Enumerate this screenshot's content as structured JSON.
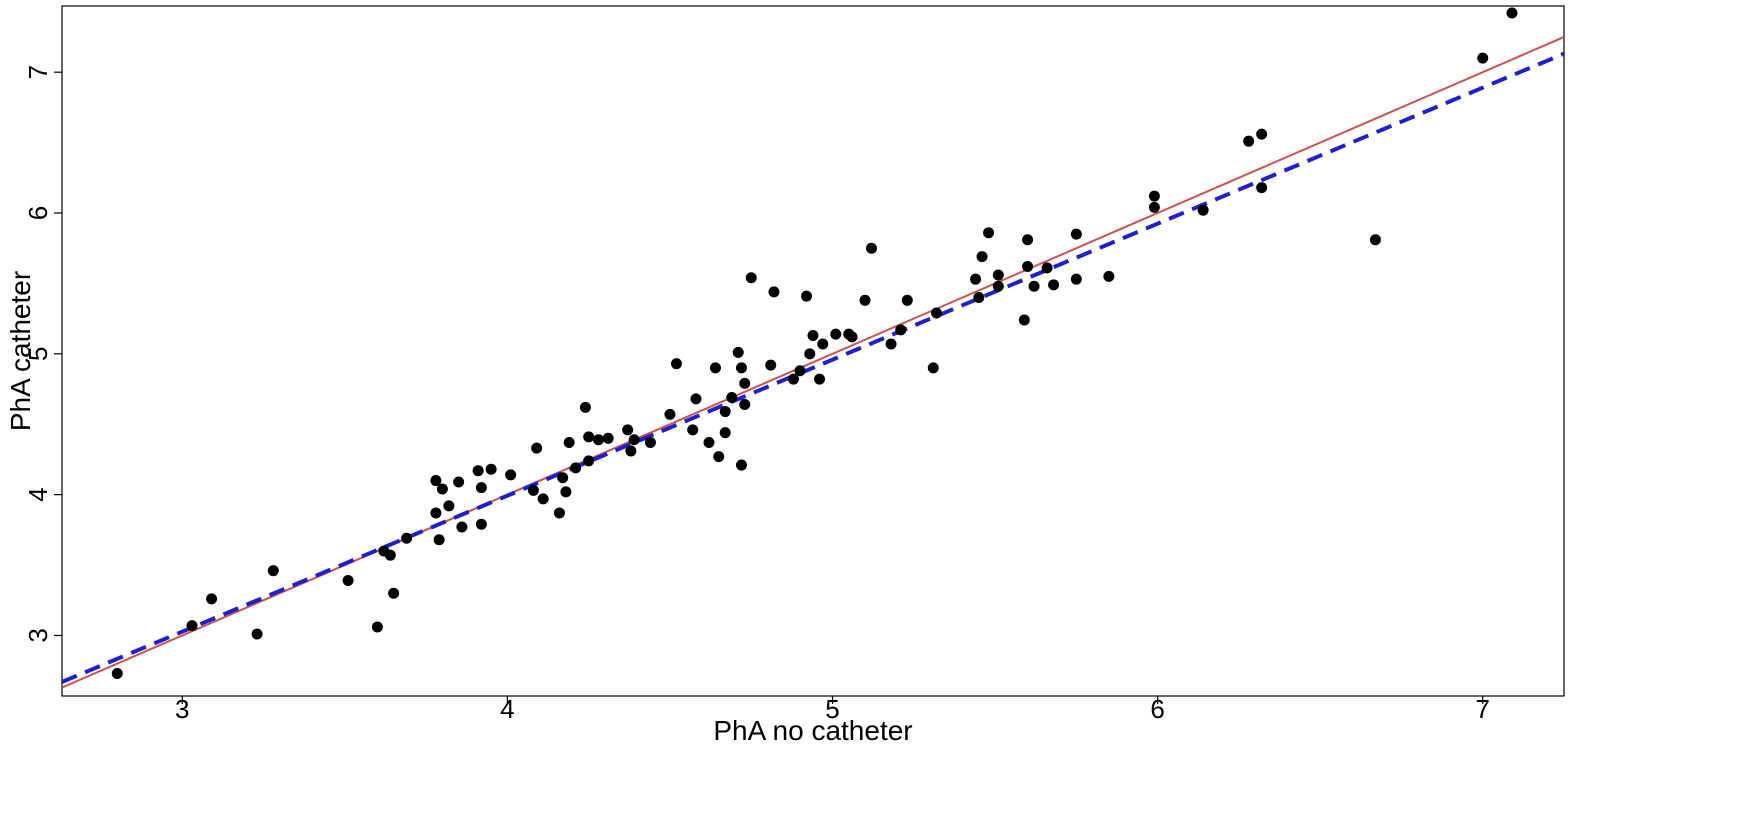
{
  "chart_data": {
    "type": "scatter",
    "title": "",
    "xlabel": "PhA no catheter",
    "ylabel": "PhA catheter",
    "xlim": [
      2.63,
      7.25
    ],
    "ylim": [
      2.57,
      7.47
    ],
    "x_ticks": [
      3,
      4,
      5,
      6,
      7
    ],
    "y_ticks": [
      3,
      4,
      5,
      6,
      7
    ],
    "grid": false,
    "legend": "none",
    "point_color": "#000000",
    "series": [
      {
        "points": [
          [
            2.8,
            2.73
          ],
          [
            3.03,
            3.07
          ],
          [
            3.09,
            3.26
          ],
          [
            3.23,
            3.01
          ],
          [
            3.28,
            3.46
          ],
          [
            3.51,
            3.39
          ],
          [
            3.6,
            3.06
          ],
          [
            3.62,
            3.6
          ],
          [
            3.64,
            3.57
          ],
          [
            3.65,
            3.3
          ],
          [
            3.69,
            3.69
          ],
          [
            3.78,
            4.1
          ],
          [
            3.78,
            3.87
          ],
          [
            3.79,
            3.68
          ],
          [
            3.8,
            4.04
          ],
          [
            3.82,
            3.92
          ],
          [
            3.85,
            4.09
          ],
          [
            3.86,
            3.77
          ],
          [
            3.91,
            4.17
          ],
          [
            3.92,
            4.05
          ],
          [
            3.92,
            3.79
          ],
          [
            3.95,
            4.18
          ],
          [
            4.01,
            4.14
          ],
          [
            4.08,
            4.03
          ],
          [
            4.09,
            4.33
          ],
          [
            4.11,
            3.97
          ],
          [
            4.16,
            3.87
          ],
          [
            4.17,
            4.12
          ],
          [
            4.18,
            4.02
          ],
          [
            4.19,
            4.37
          ],
          [
            4.21,
            4.19
          ],
          [
            4.24,
            4.62
          ],
          [
            4.25,
            4.41
          ],
          [
            4.25,
            4.24
          ],
          [
            4.28,
            4.39
          ],
          [
            4.31,
            4.4
          ],
          [
            4.37,
            4.46
          ],
          [
            4.38,
            4.31
          ],
          [
            4.39,
            4.39
          ],
          [
            4.44,
            4.37
          ],
          [
            4.5,
            4.57
          ],
          [
            4.52,
            4.93
          ],
          [
            4.57,
            4.46
          ],
          [
            4.58,
            4.68
          ],
          [
            4.62,
            4.37
          ],
          [
            4.64,
            4.9
          ],
          [
            4.65,
            4.27
          ],
          [
            4.67,
            4.44
          ],
          [
            4.67,
            4.59
          ],
          [
            4.69,
            4.69
          ],
          [
            4.71,
            5.01
          ],
          [
            4.72,
            4.21
          ],
          [
            4.72,
            4.9
          ],
          [
            4.73,
            4.64
          ],
          [
            4.73,
            4.79
          ],
          [
            4.75,
            5.54
          ],
          [
            4.81,
            4.92
          ],
          [
            4.82,
            5.44
          ],
          [
            4.88,
            4.82
          ],
          [
            4.9,
            4.88
          ],
          [
            4.92,
            5.41
          ],
          [
            4.93,
            5.0
          ],
          [
            4.94,
            5.13
          ],
          [
            4.96,
            4.82
          ],
          [
            4.97,
            5.07
          ],
          [
            5.01,
            5.14
          ],
          [
            5.05,
            5.14
          ],
          [
            5.06,
            5.12
          ],
          [
            5.1,
            5.38
          ],
          [
            5.12,
            5.75
          ],
          [
            5.18,
            5.07
          ],
          [
            5.21,
            5.17
          ],
          [
            5.23,
            5.38
          ],
          [
            5.31,
            4.9
          ],
          [
            5.32,
            5.29
          ],
          [
            5.44,
            5.53
          ],
          [
            5.45,
            5.4
          ],
          [
            5.46,
            5.69
          ],
          [
            5.48,
            5.86
          ],
          [
            5.51,
            5.48
          ],
          [
            5.51,
            5.56
          ],
          [
            5.59,
            5.24
          ],
          [
            5.6,
            5.81
          ],
          [
            5.6,
            5.62
          ],
          [
            5.62,
            5.48
          ],
          [
            5.66,
            5.61
          ],
          [
            5.68,
            5.49
          ],
          [
            5.75,
            5.85
          ],
          [
            5.75,
            5.53
          ],
          [
            5.85,
            5.55
          ],
          [
            5.99,
            6.12
          ],
          [
            5.99,
            6.04
          ],
          [
            6.14,
            6.02
          ],
          [
            6.28,
            6.51
          ],
          [
            6.32,
            6.56
          ],
          [
            6.32,
            6.18
          ],
          [
            6.67,
            5.81
          ],
          [
            7.0,
            7.1
          ],
          [
            7.09,
            7.42
          ]
        ]
      }
    ],
    "lines": [
      {
        "style": "solid",
        "color": "#d05050",
        "intercept": 0.0,
        "slope": 1.0
      },
      {
        "style": "dashed",
        "color": "#1f1fcf",
        "intercept": 0.13,
        "slope": 0.9657
      }
    ]
  }
}
